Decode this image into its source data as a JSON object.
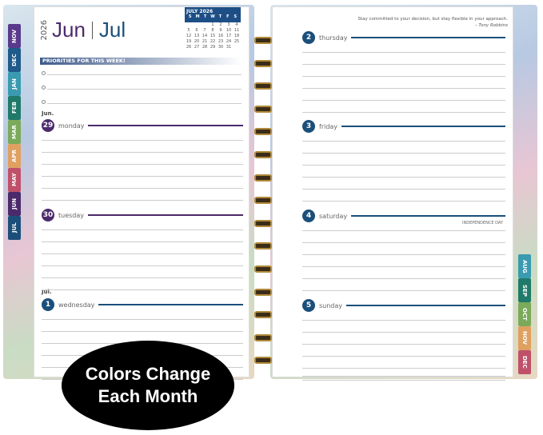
{
  "left_page": {
    "year": "2026",
    "month1": "Jun",
    "month2": "Jul",
    "mini_calendar": {
      "title": "JULY 2026",
      "weekdays": [
        "S",
        "M",
        "T",
        "W",
        "T",
        "F",
        "S"
      ],
      "days": [
        "",
        "",
        "",
        "1",
        "2",
        "3",
        "4",
        "5",
        "6",
        "7",
        "8",
        "9",
        "10",
        "11",
        "12",
        "13",
        "14",
        "15",
        "16",
        "17",
        "18",
        "19",
        "20",
        "21",
        "22",
        "23",
        "24",
        "25",
        "26",
        "27",
        "28",
        "29",
        "30",
        "31",
        ""
      ]
    },
    "priorities_label": "PRIORITIES FOR THIS WEEK!",
    "month_labels": [
      "Jun.",
      "Jul."
    ],
    "days": [
      {
        "num": "29",
        "name": "monday",
        "color": "#4b2a6b"
      },
      {
        "num": "30",
        "name": "tuesday",
        "color": "#4b2a6b"
      },
      {
        "num": "1",
        "name": "wednesday",
        "color": "#1b4f7a"
      }
    ]
  },
  "right_page": {
    "quote": "Stay committed to your decision, but stay flexible in your approach.",
    "quote_author": "– Tony Robbins",
    "days": [
      {
        "num": "2",
        "name": "thursday"
      },
      {
        "num": "3",
        "name": "friday"
      },
      {
        "num": "4",
        "name": "saturday"
      },
      {
        "num": "5",
        "name": "sunday"
      }
    ],
    "holiday": "INDEPENDENCE DAY",
    "day_color": "#1b4f7a"
  },
  "left_tabs": [
    {
      "label": "NOV",
      "color": "#5a3a8c"
    },
    {
      "label": "DEC",
      "color": "#1e5a8a"
    },
    {
      "label": "JAN",
      "color": "#3a9ab0"
    },
    {
      "label": "FEB",
      "color": "#1f7a6a"
    },
    {
      "label": "MAR",
      "color": "#7aaa5a"
    },
    {
      "label": "APR",
      "color": "#e0a060"
    },
    {
      "label": "MAY",
      "color": "#c0506a"
    },
    {
      "label": "JUN",
      "color": "#4b2a6b"
    },
    {
      "label": "JUL",
      "color": "#1b4f7a"
    }
  ],
  "right_tabs": [
    {
      "label": "AUG",
      "color": "#3a9ab0"
    },
    {
      "label": "SEP",
      "color": "#1f7a6a"
    },
    {
      "label": "OCT",
      "color": "#7aaa5a"
    },
    {
      "label": "NOV",
      "color": "#e0a060"
    },
    {
      "label": "DEC",
      "color": "#c0506a"
    }
  ],
  "badge": {
    "line1": "Colors Change",
    "line2": "Each Month"
  }
}
